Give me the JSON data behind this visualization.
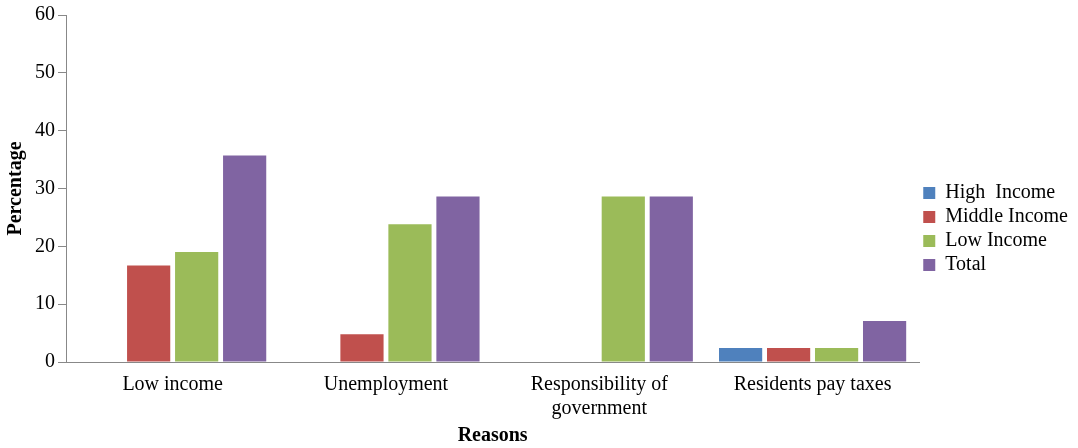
{
  "chart_data": {
    "type": "bar",
    "xlabel": "Reasons",
    "ylabel": "Percentage",
    "categories": [
      "Low income",
      "Unemployment",
      "Responsibility of government",
      "Residents pay taxes"
    ],
    "series": [
      {
        "name": "High  Income",
        "color": "#4f81bd",
        "values": [
          0,
          0,
          0,
          2.4
        ]
      },
      {
        "name": "Middle Income",
        "color": "#c0504d",
        "values": [
          16.7,
          4.8,
          0,
          2.4
        ]
      },
      {
        "name": "Low Income",
        "color": "#9bbb59",
        "values": [
          19.0,
          23.8,
          28.6,
          2.4
        ]
      },
      {
        "name": "Total",
        "color": "#8064a2",
        "values": [
          35.7,
          28.6,
          28.6,
          7.1
        ]
      }
    ],
    "ylim": [
      0,
      60
    ],
    "yticks": [
      0,
      10,
      20,
      30,
      40,
      50,
      60
    ],
    "grid": false,
    "legend": "right"
  }
}
